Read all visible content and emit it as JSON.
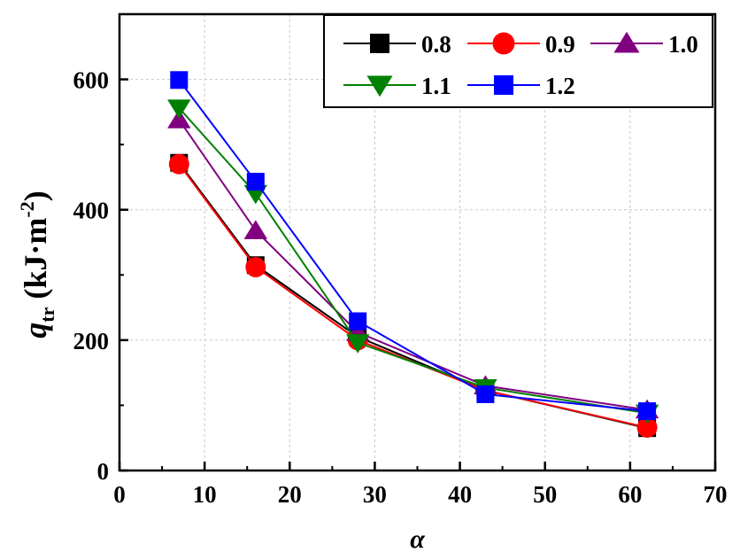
{
  "chart_data": {
    "type": "line",
    "title": "",
    "xlabel": "α",
    "ylabel": {
      "main": "q",
      "subscript": "tr",
      "units": " (kJ·m",
      "superscript": "-2",
      "close": ")"
    },
    "xlim": [
      0,
      70
    ],
    "ylim": [
      0,
      700
    ],
    "xticks": [
      0,
      10,
      20,
      30,
      40,
      50,
      60,
      70
    ],
    "yticks": [
      0,
      200,
      400,
      600
    ],
    "grid": true,
    "legend_position": "top-right",
    "x": [
      7,
      16,
      28,
      43,
      62
    ],
    "series": [
      {
        "name": "0.8",
        "color": "#000000",
        "marker": "square",
        "values": [
          472,
          315,
          205,
          123,
          65
        ]
      },
      {
        "name": "0.9",
        "color": "#ff0000",
        "marker": "circle",
        "values": [
          470,
          312,
          200,
          123,
          66
        ]
      },
      {
        "name": "1.0",
        "color": "#800080",
        "marker": "triangle-up",
        "values": [
          538,
          368,
          212,
          130,
          93
        ]
      },
      {
        "name": "1.1",
        "color": "#008000",
        "marker": "triangle-down",
        "values": [
          556,
          425,
          196,
          127,
          88
        ]
      },
      {
        "name": "1.2",
        "color": "#0000ff",
        "marker": "square",
        "values": [
          599,
          443,
          229,
          117,
          91
        ]
      }
    ]
  }
}
